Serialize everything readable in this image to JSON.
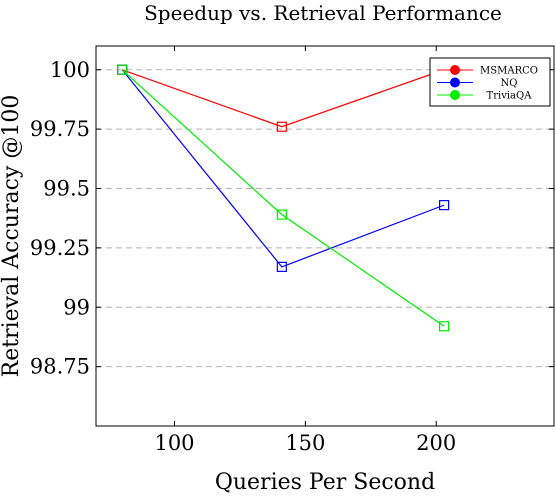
{
  "chart_data": {
    "type": "line",
    "title": "Speedup vs. Retrieval Performance",
    "xlabel": "Queries Per Second",
    "ylabel": "Retrieval Accuracy @100",
    "xlim": [
      70,
      245
    ],
    "ylim": [
      98.5,
      100.1
    ],
    "xticks": [
      100,
      150,
      200
    ],
    "yticks": [
      98.75,
      99,
      99.25,
      99.5,
      99.75,
      100
    ],
    "xtick_labels": [
      "100",
      "150",
      "200"
    ],
    "ytick_labels": [
      "98.75",
      "99",
      "99.25",
      "99.5",
      "99.75",
      "100"
    ],
    "grid": "horizontal dashed",
    "legend_position": "top-right",
    "marker": "square",
    "series": [
      {
        "name": "MSMARCO",
        "color": "#ff0000",
        "x": [
          80,
          141,
          203
        ],
        "y": [
          100,
          99.76,
          100
        ]
      },
      {
        "name": "NQ",
        "color": "#0000ff",
        "x": [
          80,
          141,
          203
        ],
        "y": [
          100,
          99.17,
          99.43
        ]
      },
      {
        "name": "TriviaQA",
        "color": "#00ee00",
        "x": [
          80,
          141,
          203
        ],
        "y": [
          100,
          99.39,
          98.92
        ]
      }
    ]
  }
}
